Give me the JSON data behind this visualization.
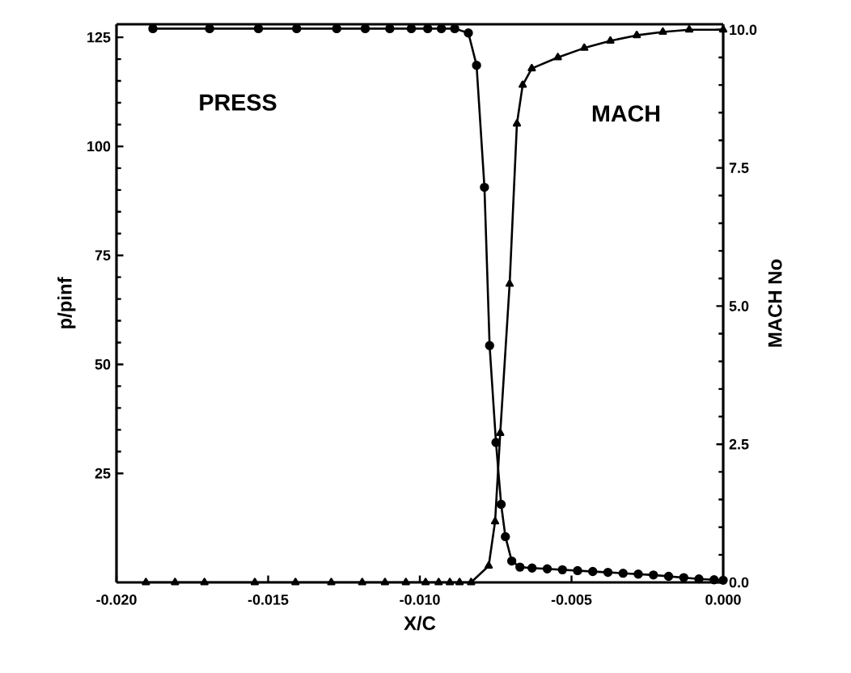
{
  "chart_data": {
    "type": "line",
    "xlabel": "X/C",
    "ylabel": "p/pinf",
    "y2label": "MACH No",
    "xlim": [
      -0.02,
      0.0
    ],
    "ylim": [
      0,
      128
    ],
    "y2lim": [
      0,
      10.1
    ],
    "xticks": [
      {
        "value": -0.02,
        "label": "-0.020"
      },
      {
        "value": -0.015,
        "label": "-0.015"
      },
      {
        "value": -0.01,
        "label": "-0.010"
      },
      {
        "value": -0.005,
        "label": "-0.005"
      },
      {
        "value": 0.0,
        "label": "0.000"
      }
    ],
    "yticks": [
      25,
      50,
      75,
      100,
      125
    ],
    "y2ticks": [
      {
        "value": 0,
        "label": "0.0"
      },
      {
        "value": 2.5,
        "label": "2.5"
      },
      {
        "value": 5,
        "label": "5.0"
      },
      {
        "value": 7.5,
        "label": "7.5"
      },
      {
        "value": 10,
        "label": "10.0"
      }
    ],
    "grid": false,
    "line_style": "solid",
    "series": [
      {
        "name": "PRESS",
        "color": "#000000",
        "marker": "circle",
        "x": [
          -0.0188,
          -0.01693,
          -0.01532,
          -0.01406,
          -0.01274,
          -0.0118,
          -0.01099,
          -0.01028,
          -0.00974,
          -0.00929,
          -0.00885,
          -0.0084,
          -0.00813,
          -0.00787,
          -0.0077,
          -0.00749,
          -0.00732,
          -0.00718,
          -0.00697,
          -0.0067,
          -0.0063,
          -0.0058,
          -0.0053,
          -0.0048,
          -0.0043,
          -0.0038,
          -0.0033,
          -0.0028,
          -0.0023,
          -0.0018,
          -0.0013,
          -0.0008,
          -0.0003,
          0.0
        ],
        "values": [
          127,
          127,
          127,
          127,
          127,
          127,
          127,
          127,
          127,
          127,
          127,
          126,
          118.6,
          90.6,
          54.3,
          32.1,
          17.9,
          10.5,
          4.9,
          3.5,
          3.3,
          3.1,
          2.9,
          2.7,
          2.5,
          2.3,
          2.1,
          1.9,
          1.7,
          1.4,
          1.1,
          0.8,
          0.6,
          0.5
        ]
      },
      {
        "name": "MACH",
        "color": "#000000",
        "marker": "triangle",
        "axis": "y2",
        "x": [
          -0.01903,
          -0.01807,
          -0.0171,
          -0.01544,
          -0.0141,
          -0.01292,
          -0.0119,
          -0.01115,
          -0.01046,
          -0.00981,
          -0.00938,
          -0.00901,
          -0.00869,
          -0.00831,
          -0.00773,
          -0.00752,
          -0.00735,
          -0.00704,
          -0.0068,
          -0.00661,
          -0.00631,
          -0.00545,
          -0.00458,
          -0.00372,
          -0.00285,
          -0.00199,
          -0.00112,
          0.0
        ],
        "values": [
          0,
          0,
          0,
          0,
          0,
          0,
          0,
          0,
          0,
          0,
          0,
          0,
          0,
          0,
          0.3,
          1.1,
          2.7,
          5.4,
          8.3,
          9.0,
          9.3,
          9.5,
          9.67,
          9.8,
          9.9,
          9.96,
          10.0,
          10.0
        ]
      }
    ]
  }
}
